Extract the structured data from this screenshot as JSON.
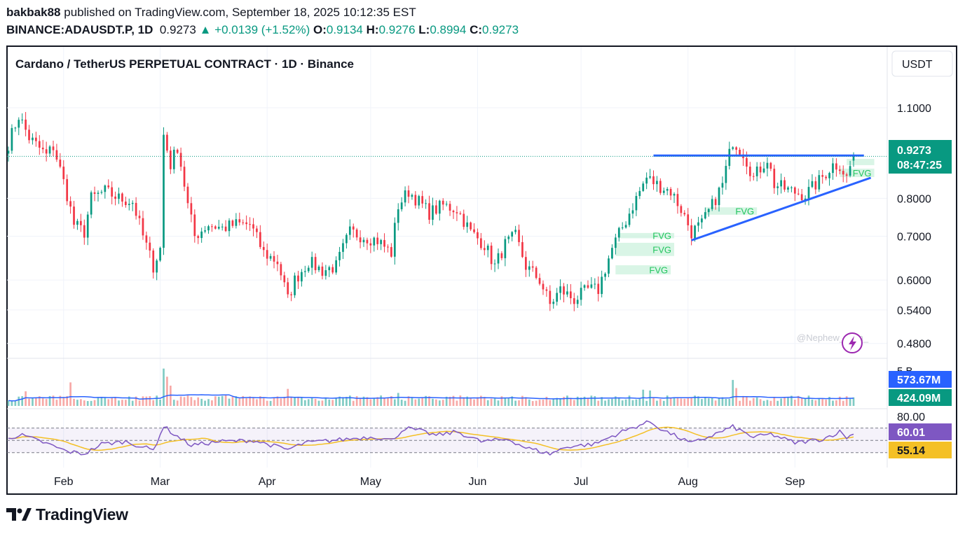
{
  "header": {
    "author": "bakbak88",
    "published_text": "published on TradingView.com, September 18, 2025 10:12:35 EST",
    "symbol": "BINANCE:ADAUSDT.P, 1D",
    "last_price": "0.9273",
    "change": "+0.0139 (+1.52%)",
    "open_label": "O:",
    "open": "0.9134",
    "high_label": "H:",
    "high": "0.9276",
    "low_label": "L:",
    "low": "0.8994",
    "close_label": "C:",
    "close": "0.9273"
  },
  "colors": {
    "up": "#089981",
    "down": "#f23645",
    "trendline": "#2962ff",
    "fvg": "#ccf2dd",
    "fvg_text": "#22c55e",
    "rsi": "#7e57c2",
    "rsi_ma": "#f4c025",
    "volume_ma": "#2962ff"
  },
  "chart_data": {
    "type": "candlestick",
    "title": "Cardano / TetherUS PERPETUAL CONTRACT · 1D · Binance",
    "currency_button": "USDT",
    "yaxis_scale": "log",
    "ylim": [
      0.46,
      1.22
    ],
    "yticks": [
      "1.1000",
      "0.8000",
      "0.7000",
      "0.6000",
      "0.5400",
      "0.4800"
    ],
    "yticks_values": [
      1.1,
      0.8,
      0.7,
      0.6,
      0.54,
      0.48
    ],
    "xticks": [
      "Feb",
      "Mar",
      "Apr",
      "May",
      "Jun",
      "Jul",
      "Aug",
      "Sep"
    ],
    "date_range": [
      "2025-01-16",
      "2025-09-18"
    ],
    "price_label": "0.9273",
    "countdown_label": "08:47:25",
    "anchors": [
      [
        "2025-01-16",
        0.97
      ],
      [
        "2025-01-19",
        1.07
      ],
      [
        "2025-01-22",
        0.99
      ],
      [
        "2025-01-27",
        0.93
      ],
      [
        "2025-01-29",
        0.96
      ],
      [
        "2025-02-02",
        0.81
      ],
      [
        "2025-02-04",
        0.73
      ],
      [
        "2025-02-07",
        0.71
      ],
      [
        "2025-02-09",
        0.8
      ],
      [
        "2025-02-13",
        0.82
      ],
      [
        "2025-02-17",
        0.8
      ],
      [
        "2025-02-21",
        0.79
      ],
      [
        "2025-02-24",
        0.7
      ],
      [
        "2025-02-27",
        0.63
      ],
      [
        "2025-03-01",
        0.67
      ],
      [
        "2025-03-02",
        1.0
      ],
      [
        "2025-03-04",
        0.9
      ],
      [
        "2025-03-06",
        0.96
      ],
      [
        "2025-03-09",
        0.78
      ],
      [
        "2025-03-11",
        0.7
      ],
      [
        "2025-03-15",
        0.73
      ],
      [
        "2025-03-19",
        0.72
      ],
      [
        "2025-03-23",
        0.73
      ],
      [
        "2025-03-27",
        0.73
      ],
      [
        "2025-03-31",
        0.66
      ],
      [
        "2025-04-04",
        0.64
      ],
      [
        "2025-04-07",
        0.56
      ],
      [
        "2025-04-09",
        0.6
      ],
      [
        "2025-04-13",
        0.64
      ],
      [
        "2025-04-17",
        0.62
      ],
      [
        "2025-04-21",
        0.63
      ],
      [
        "2025-04-25",
        0.71
      ],
      [
        "2025-04-29",
        0.7
      ],
      [
        "2025-05-03",
        0.69
      ],
      [
        "2025-05-07",
        0.66
      ],
      [
        "2025-05-09",
        0.78
      ],
      [
        "2025-05-12",
        0.82
      ],
      [
        "2025-05-14",
        0.8
      ],
      [
        "2025-05-18",
        0.76
      ],
      [
        "2025-05-22",
        0.78
      ],
      [
        "2025-05-26",
        0.77
      ],
      [
        "2025-05-30",
        0.71
      ],
      [
        "2025-06-03",
        0.68
      ],
      [
        "2025-06-06",
        0.63
      ],
      [
        "2025-06-09",
        0.68
      ],
      [
        "2025-06-12",
        0.7
      ],
      [
        "2025-06-15",
        0.63
      ],
      [
        "2025-06-19",
        0.6
      ],
      [
        "2025-06-22",
        0.55
      ],
      [
        "2025-06-25",
        0.58
      ],
      [
        "2025-06-29",
        0.56
      ],
      [
        "2025-07-03",
        0.58
      ],
      [
        "2025-07-06",
        0.58
      ],
      [
        "2025-07-10",
        0.67
      ],
      [
        "2025-07-14",
        0.74
      ],
      [
        "2025-07-18",
        0.82
      ],
      [
        "2025-07-20",
        0.86
      ],
      [
        "2025-07-23",
        0.84
      ],
      [
        "2025-07-27",
        0.82
      ],
      [
        "2025-07-30",
        0.77
      ],
      [
        "2025-08-02",
        0.71
      ],
      [
        "2025-08-05",
        0.73
      ],
      [
        "2025-08-08",
        0.78
      ],
      [
        "2025-08-11",
        0.84
      ],
      [
        "2025-08-14",
        0.98
      ],
      [
        "2025-08-17",
        0.94
      ],
      [
        "2025-08-20",
        0.86
      ],
      [
        "2025-08-24",
        0.92
      ],
      [
        "2025-08-26",
        0.84
      ],
      [
        "2025-08-31",
        0.82
      ],
      [
        "2025-09-04",
        0.81
      ],
      [
        "2025-09-08",
        0.85
      ],
      [
        "2025-09-12",
        0.9
      ],
      [
        "2025-09-14",
        0.9
      ],
      [
        "2025-09-16",
        0.86
      ],
      [
        "2025-09-18",
        0.9273
      ]
    ],
    "resistance_line": {
      "price": 0.93,
      "from": "2025-07-22",
      "to": "2025-09-21"
    },
    "support_line": {
      "from": [
        "2025-08-02",
        0.69
      ],
      "to": [
        "2025-09-23",
        0.86
      ]
    },
    "fvg_zones": [
      {
        "label": "FVG",
        "from": "2025-07-11",
        "to": "2025-07-27",
        "top": 0.632,
        "bottom": 0.612
      },
      {
        "label": "FVG",
        "from": "2025-07-11",
        "to": "2025-07-28",
        "top": 0.684,
        "bottom": 0.653
      },
      {
        "label": "FVG",
        "from": "2025-07-12",
        "to": "2025-07-28",
        "top": 0.708,
        "bottom": 0.695
      },
      {
        "label": "FVG",
        "from": "2025-08-06",
        "to": "2025-08-21",
        "top": 0.775,
        "bottom": 0.755
      },
      {
        "label": "FVG",
        "from": "2025-09-14",
        "to": "2025-09-24",
        "top": 0.888,
        "bottom": 0.862
      },
      {
        "label": "",
        "from": "2025-09-16",
        "to": "2025-09-24",
        "top": 0.919,
        "bottom": 0.899
      }
    ],
    "volume": {
      "axis_label": "5 B",
      "ma_label": "573.67M",
      "last_label": "424.09M",
      "spikes": [
        [
          "2025-01-21",
          1.8
        ],
        [
          "2025-02-03",
          2.9
        ],
        [
          "2025-03-02",
          4.6
        ],
        [
          "2025-03-03",
          3.6
        ],
        [
          "2025-03-04",
          2.5
        ],
        [
          "2025-04-07",
          2.1
        ],
        [
          "2025-05-09",
          1.6
        ],
        [
          "2025-07-19",
          2.0
        ],
        [
          "2025-07-21",
          1.9
        ],
        [
          "2025-08-14",
          3.2
        ],
        [
          "2025-08-15",
          2.2
        ]
      ]
    },
    "rsi": {
      "ylim": [
        15,
        90
      ],
      "top_label": "80.00",
      "rsi_label": "60.01",
      "ma_label": "55.14",
      "bands": [
        70,
        50,
        30
      ],
      "anchors": [
        [
          "2025-01-16",
          55
        ],
        [
          "2025-01-20",
          58
        ],
        [
          "2025-01-27",
          45
        ],
        [
          "2025-02-02",
          32
        ],
        [
          "2025-02-07",
          28
        ],
        [
          "2025-02-12",
          44
        ],
        [
          "2025-02-19",
          48
        ],
        [
          "2025-02-27",
          34
        ],
        [
          "2025-03-02",
          73
        ],
        [
          "2025-03-05",
          60
        ],
        [
          "2025-03-10",
          42
        ],
        [
          "2025-03-18",
          48
        ],
        [
          "2025-03-28",
          50
        ],
        [
          "2025-04-07",
          35
        ],
        [
          "2025-04-12",
          46
        ],
        [
          "2025-04-24",
          52
        ],
        [
          "2025-05-02",
          56
        ],
        [
          "2025-05-07",
          50
        ],
        [
          "2025-05-11",
          70
        ],
        [
          "2025-05-15",
          66
        ],
        [
          "2025-05-20",
          58
        ],
        [
          "2025-05-26",
          64
        ],
        [
          "2025-06-02",
          48
        ],
        [
          "2025-06-10",
          52
        ],
        [
          "2025-06-15",
          38
        ],
        [
          "2025-06-22",
          28
        ],
        [
          "2025-06-27",
          40
        ],
        [
          "2025-07-05",
          44
        ],
        [
          "2025-07-12",
          62
        ],
        [
          "2025-07-18",
          75
        ],
        [
          "2025-07-21",
          80
        ],
        [
          "2025-07-25",
          66
        ],
        [
          "2025-08-02",
          45
        ],
        [
          "2025-08-08",
          58
        ],
        [
          "2025-08-14",
          72
        ],
        [
          "2025-08-20",
          55
        ],
        [
          "2025-08-25",
          60
        ],
        [
          "2025-09-01",
          46
        ],
        [
          "2025-09-09",
          52
        ],
        [
          "2025-09-14",
          64
        ],
        [
          "2025-09-16",
          55
        ],
        [
          "2025-09-18",
          60
        ]
      ]
    },
    "watermark": "@Nephew_Sam_"
  },
  "footer": {
    "brand": "TradingView"
  }
}
